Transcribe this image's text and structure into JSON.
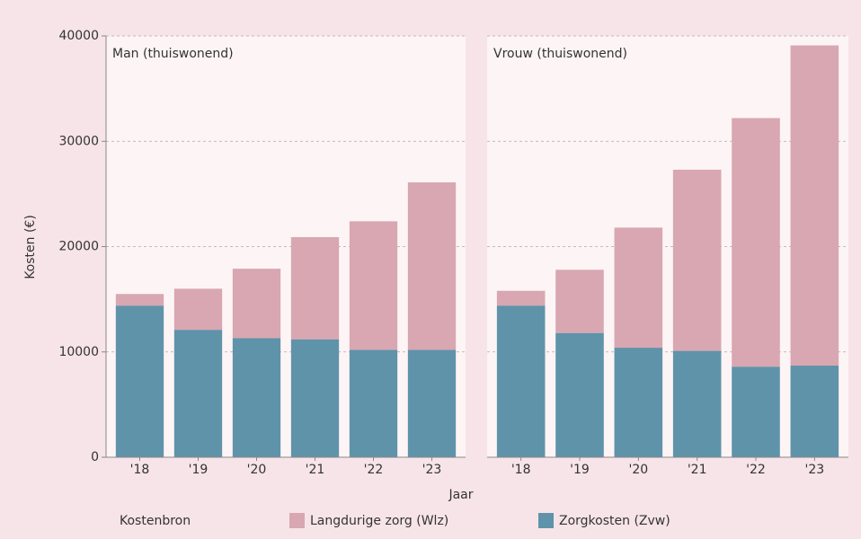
{
  "shared": {
    "y_label": "Kosten (€)",
    "x_label": "Jaar",
    "legend_title": "Kostenbron"
  },
  "chart_data": [
    {
      "type": "bar",
      "stacked": true,
      "title": "Man (thuiswonend)",
      "categories": [
        "'18",
        "'19",
        "'20",
        "'21",
        "'22",
        "'23"
      ],
      "series": [
        {
          "name": "Zorgkosten (Zvw)",
          "color": "#5f93a9",
          "values": [
            14400,
            12100,
            11300,
            11200,
            10200,
            10200
          ]
        },
        {
          "name": "Langdurige zorg (Wlz)",
          "color": "#d8a7b1",
          "values": [
            1100,
            3900,
            6600,
            9700,
            12200,
            15900
          ]
        }
      ],
      "ylim": [
        0,
        40000
      ],
      "yticks": [
        0,
        10000,
        20000,
        30000,
        40000
      ],
      "grid": true
    },
    {
      "type": "bar",
      "stacked": true,
      "title": "Vrouw (thuiswonend)",
      "categories": [
        "'18",
        "'19",
        "'20",
        "'21",
        "'22",
        "'23"
      ],
      "series": [
        {
          "name": "Zorgkosten (Zvw)",
          "color": "#5f93a9",
          "values": [
            14400,
            11800,
            10400,
            10100,
            8600,
            8700
          ]
        },
        {
          "name": "Langdurige zorg (Wlz)",
          "color": "#d8a7b1",
          "values": [
            1400,
            6000,
            11400,
            17200,
            23600,
            30400
          ]
        }
      ],
      "ylim": [
        0,
        40000
      ],
      "yticks": [
        0,
        10000,
        20000,
        30000,
        40000
      ],
      "grid": true
    }
  ]
}
